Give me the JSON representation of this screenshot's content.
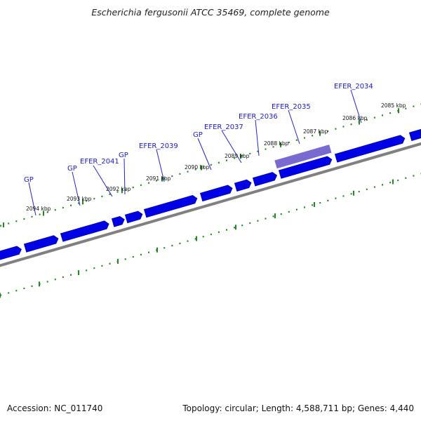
{
  "title": "Escherichia fergusonii ATCC 35469, complete genome",
  "accession": "Accession: NC_011740",
  "summary": "Topology: circular; Length: 4,588,711 bp; Genes: 4,440",
  "colors": {
    "gene": "#0000e6",
    "gene_highlight": "#6a5acd",
    "backbone": "#808080",
    "tick": "#1e8a1e",
    "label": "#1a1acc"
  },
  "tick_labels": [
    {
      "label": "2094 kbp"
    },
    {
      "label": "2093 kbp"
    },
    {
      "label": "2092 kbp"
    },
    {
      "label": "2091 kbp"
    },
    {
      "label": "2090 kbp"
    },
    {
      "label": "2089 kbp"
    },
    {
      "label": "2088 kbp"
    },
    {
      "label": "2087 kbp"
    },
    {
      "label": "2086 kbp"
    },
    {
      "label": "2085 kbp"
    }
  ],
  "gene_labels": [
    {
      "label": "GP"
    },
    {
      "label": "GP"
    },
    {
      "label": "EFER_2041"
    },
    {
      "label": "GP"
    },
    {
      "label": "EFER_2039"
    },
    {
      "label": "GP"
    },
    {
      "label": "EFER_2037"
    },
    {
      "label": "EFER_2036"
    },
    {
      "label": "EFER_2035"
    },
    {
      "label": "EFER_2034"
    }
  ]
}
